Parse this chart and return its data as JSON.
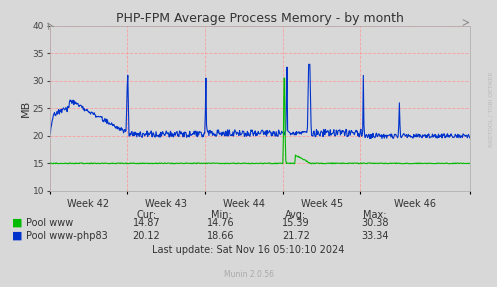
{
  "title": "PHP-FPM Average Process Memory - by month",
  "ylabel": "MB",
  "background_color": "#d8d8d8",
  "plot_background": "#d8d8d8",
  "grid_color": "#ff9999",
  "ylim": [
    10,
    40
  ],
  "yticks": [
    10,
    15,
    20,
    25,
    30,
    35,
    40
  ],
  "x_labels": [
    "Week 42",
    "Week 43",
    "Week 44",
    "Week 45",
    "Week 46"
  ],
  "line_www_color": "#00bb00",
  "line_php83_color": "#0033cc",
  "legend": [
    {
      "label": "Pool www",
      "color": "#00bb00"
    },
    {
      "label": "Pool www-php83",
      "color": "#0033cc"
    }
  ],
  "stats": {
    "cur_label": "Cur:",
    "min_label": "Min:",
    "avg_label": "Avg:",
    "max_label": "Max:",
    "www_cur": "14.87",
    "www_min": "14.76",
    "www_avg": "15.39",
    "www_max": "30.38",
    "php83_cur": "20.12",
    "php83_min": "18.66",
    "php83_avg": "21.72",
    "php83_max": "33.34"
  },
  "last_update": "Last update: Sat Nov 16 05:10:10 2024",
  "munin_version": "Munin 2.0.56",
  "watermark": "RRDTOOL / TOBI OETIKER"
}
